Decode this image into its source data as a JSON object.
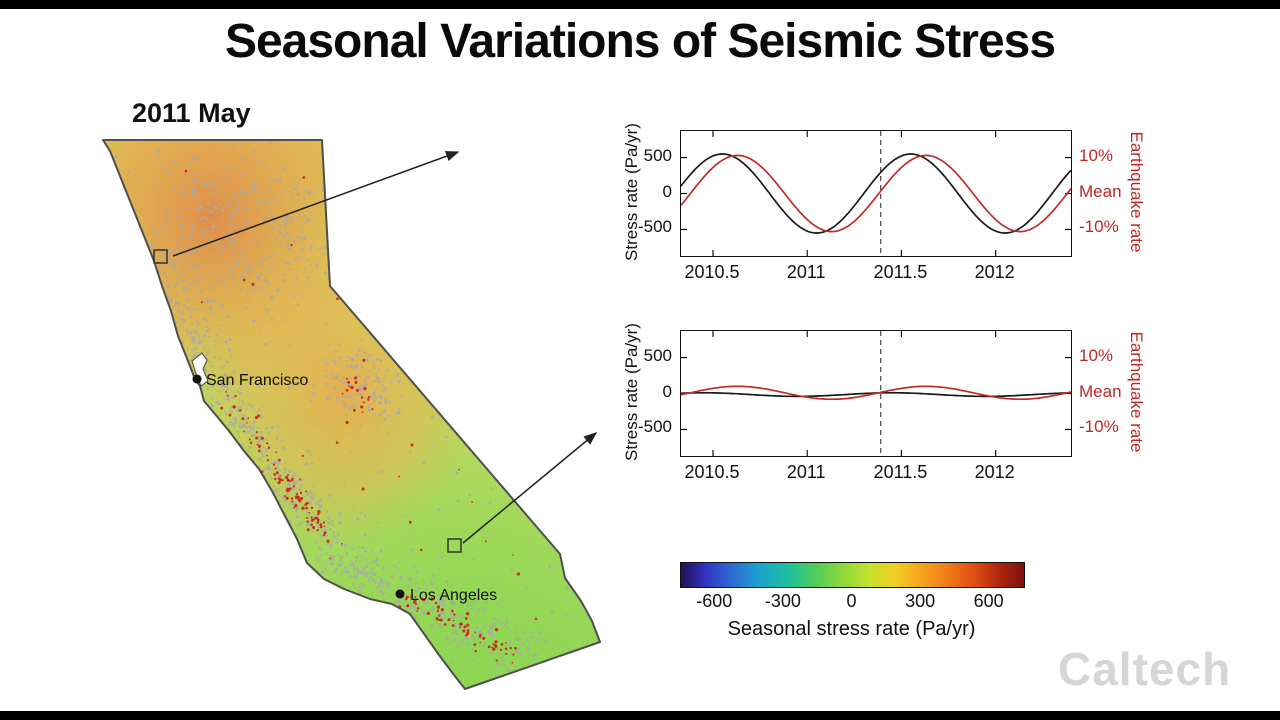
{
  "page": {
    "title": "Seasonal Variations of Seismic Stress",
    "watermark": "Caltech",
    "background": "#ffffff",
    "letterbox_color": "#000000"
  },
  "map": {
    "heading": "2011 May",
    "cities": [
      {
        "name": "San Francisco"
      },
      {
        "name": "Los Angeles"
      }
    ],
    "colors": {
      "north_patch": "#e08a48",
      "center_patch": "#f0a44a",
      "base_top": "#d6ca5c",
      "base_mid": "#b9dc60",
      "base_bottom": "#8ed456",
      "seismicity_dots": "#aaaaaa",
      "earthquake_dots": "#cf1f15",
      "outline": "#4f4f4f"
    }
  },
  "chart_data": [
    {
      "type": "line",
      "panel": "top",
      "ylabel_left": "Stress rate (Pa/yr)",
      "ylabel_right": "Earthquake rate",
      "yticks_left": [
        "500",
        "0",
        "-500"
      ],
      "yticks_left_values": [
        500,
        0,
        -500
      ],
      "yticks_right": [
        "10%",
        "Mean",
        "-10%"
      ],
      "xticks": [
        "2010.5",
        "2011",
        "2011.5",
        "2012"
      ],
      "xtick_values": [
        2010.5,
        2011,
        2011.5,
        2012
      ],
      "x_range": [
        2010.33,
        2012.4
      ],
      "ylim": [
        -870,
        870
      ],
      "dashed_line_x": 2011.39,
      "pct_to_left_units": 50,
      "grid": false,
      "series": [
        {
          "name": "stress rate",
          "color": "#1a1a1a",
          "axis": "left",
          "model": "cosine",
          "mean": 0,
          "amplitude": 550,
          "period": 1,
          "peak_x": 2010.55
        },
        {
          "name": "earthquake rate",
          "color": "#c12b28",
          "axis": "right",
          "model": "cosine",
          "mean_pct": 0,
          "amplitude_pct": 10.6,
          "period": 1,
          "peak_x": 2010.63
        }
      ]
    },
    {
      "type": "line",
      "panel": "bottom",
      "ylabel_left": "Stress rate (Pa/yr)",
      "ylabel_right": "Earthquake rate",
      "yticks_left": [
        "500",
        "0",
        "-500"
      ],
      "yticks_left_values": [
        500,
        0,
        -500
      ],
      "yticks_right": [
        "10%",
        "Mean",
        "-10%"
      ],
      "xticks": [
        "2010.5",
        "2011",
        "2011.5",
        "2012"
      ],
      "xtick_values": [
        2010.5,
        2011,
        2011.5,
        2012
      ],
      "x_range": [
        2010.33,
        2012.4
      ],
      "ylim": [
        -870,
        870
      ],
      "dashed_line_x": 2011.39,
      "pct_to_left_units": 50,
      "grid": false,
      "series": [
        {
          "name": "stress rate",
          "color": "#1a1a1a",
          "axis": "left",
          "model": "cosine",
          "mean": -15,
          "amplitude": 25,
          "period": 1,
          "peak_x": 2010.45
        },
        {
          "name": "earthquake rate",
          "color": "#c12b28",
          "axis": "right",
          "model": "cosine",
          "mean_pct": 0.2,
          "amplitude_pct": 1.8,
          "period": 1,
          "peak_x": 2010.63
        }
      ]
    },
    {
      "type": "colorbar",
      "label": "Seasonal stress rate (Pa/yr)",
      "tick_labels": [
        "-600",
        "-300",
        "0",
        "300",
        "600"
      ],
      "tick_values": [
        -600,
        -300,
        0,
        300,
        600
      ],
      "range": [
        -750,
        750
      ],
      "stops": [
        [
          0,
          "#23104f"
        ],
        [
          0.07,
          "#3133c2"
        ],
        [
          0.15,
          "#2d6bd4"
        ],
        [
          0.23,
          "#1ba3cc"
        ],
        [
          0.31,
          "#1cbf9f"
        ],
        [
          0.39,
          "#4fcb59"
        ],
        [
          0.47,
          "#8cd83b"
        ],
        [
          0.55,
          "#c6e12e"
        ],
        [
          0.62,
          "#efd026"
        ],
        [
          0.7,
          "#f6a51c"
        ],
        [
          0.78,
          "#f07a17"
        ],
        [
          0.86,
          "#dd4a13"
        ],
        [
          0.93,
          "#b0250f"
        ],
        [
          1,
          "#7c120c"
        ]
      ]
    }
  ]
}
